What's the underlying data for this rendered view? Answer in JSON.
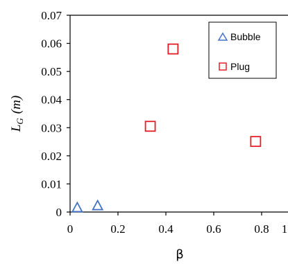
{
  "chart_data": {
    "type": "scatter",
    "xlabel": "β",
    "ylabel_main": "L",
    "ylabel_sub": "G",
    "ylabel_unit": "(m)",
    "xlim": [
      0,
      1
    ],
    "ylim": [
      0,
      0.07
    ],
    "x_ticks": [
      "0",
      "0.2",
      "0.4",
      "0.6",
      "0.8",
      "1"
    ],
    "y_ticks": [
      "0",
      "0.01",
      "0.02",
      "0.03",
      "0.04",
      "0.05",
      "0.06",
      "0.07"
    ],
    "grid": false,
    "legend_position": "top-right",
    "series": [
      {
        "name": "Bubble",
        "marker": "triangle",
        "color": "#4472C4",
        "points": [
          [
            0.03,
            0.0015
          ],
          [
            0.115,
            0.0022
          ]
        ]
      },
      {
        "name": "Plug",
        "marker": "square",
        "color": "#E41E26",
        "points": [
          [
            0.335,
            0.0305
          ],
          [
            0.43,
            0.058
          ],
          [
            0.775,
            0.0251
          ]
        ]
      }
    ]
  }
}
